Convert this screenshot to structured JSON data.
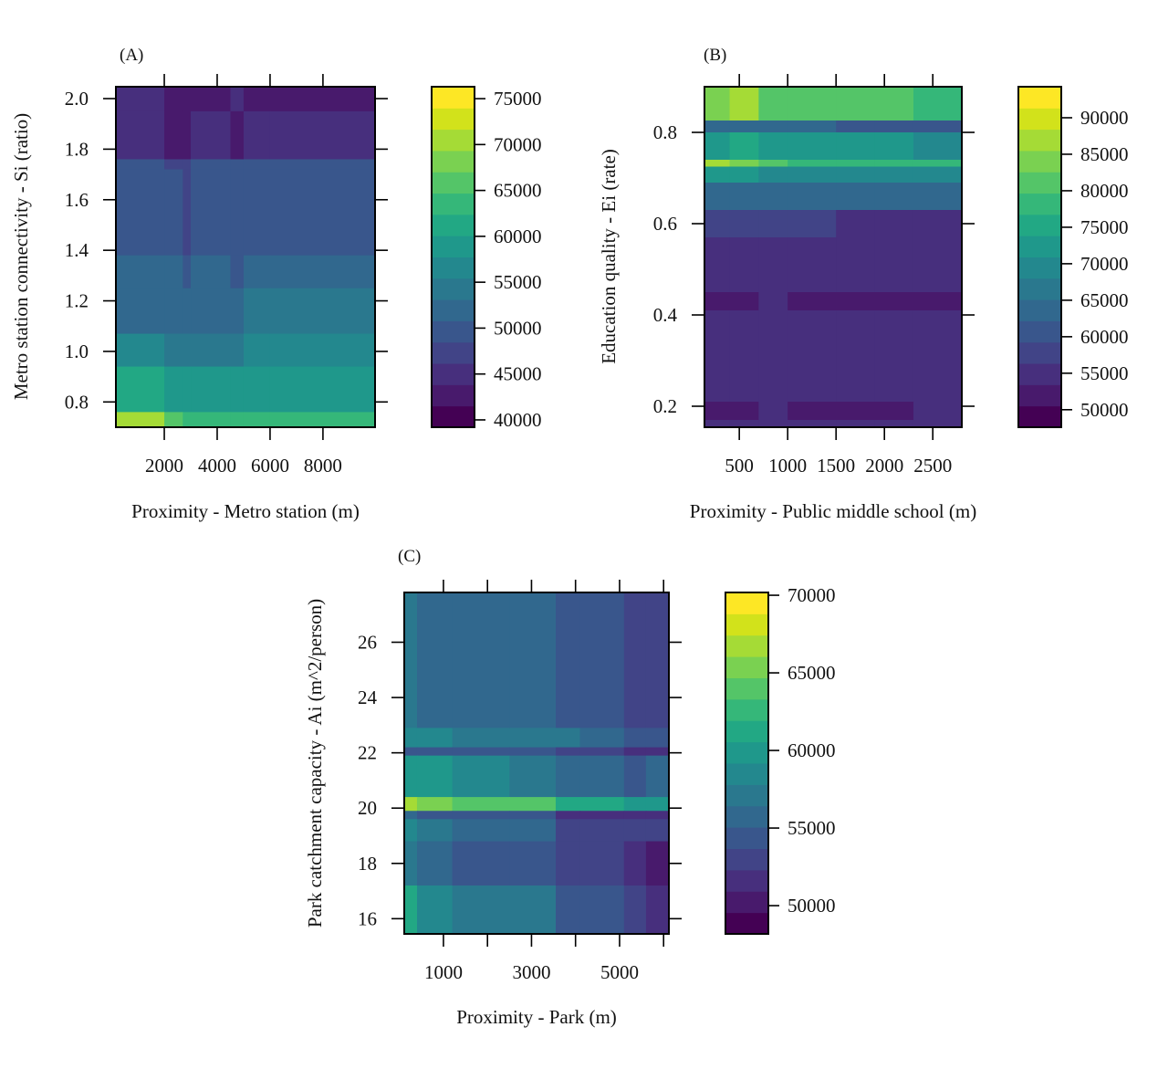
{
  "figure": {
    "panels": [
      "(A)",
      "(B)",
      "(C)"
    ]
  },
  "colormap": {
    "name": "viridis",
    "bands": 16,
    "colors": [
      "#440154",
      "#481a6c",
      "#472f7d",
      "#414487",
      "#39568c",
      "#31688e",
      "#2a788e",
      "#23888e",
      "#1f988b",
      "#22a884",
      "#35b779",
      "#54c568",
      "#7ad151",
      "#a5db36",
      "#d2e21b",
      "#fde725"
    ]
  },
  "chart_data": [
    {
      "id": "A",
      "type": "heatmap",
      "title": "(A)",
      "xlabel": "Proximity - Metro station (m)",
      "ylabel": "Metro station connectivity  - Si (ratio)",
      "xlim": [
        170,
        9970
      ],
      "ylim": [
        0.7,
        2.047
      ],
      "xticks": [
        2000,
        4000,
        6000,
        8000
      ],
      "xtick_labels": [
        "2000",
        "4000",
        "6000",
        "8000"
      ],
      "yticks": [
        0.8,
        1.0,
        1.2,
        1.4,
        1.6,
        1.8,
        2.0
      ],
      "ytick_labels": [
        "0.8",
        "1.0",
        "1.2",
        "1.4",
        "1.6",
        "1.8",
        "2.0"
      ],
      "colorbar": {
        "range": [
          39200,
          76300
        ],
        "ticks": [
          40000,
          45000,
          50000,
          55000,
          60000,
          65000,
          70000,
          75000
        ],
        "tick_labels": [
          "40000",
          "45000",
          "50000",
          "55000",
          "60000",
          "65000",
          "70000",
          "75000"
        ]
      },
      "x_breaks": [
        170,
        2000,
        2700,
        3000,
        4500,
        5000,
        6000,
        9970
      ],
      "rows": [
        {
          "y": [
            1.95,
            2.047
          ],
          "values": [
            44500,
            43000,
            42500,
            43500,
            44000,
            42500,
            42500
          ]
        },
        {
          "y": [
            1.76,
            1.95
          ],
          "values": [
            44500,
            43500,
            42800,
            44200,
            42600,
            44500,
            44500
          ]
        },
        {
          "y": [
            1.72,
            1.76
          ],
          "values": [
            48500,
            48000,
            47500,
            48500,
            48500,
            48500,
            48500
          ]
        },
        {
          "y": [
            1.38,
            1.72
          ],
          "values": [
            49000,
            48800,
            46500,
            49500,
            49500,
            49500,
            49500
          ]
        },
        {
          "y": [
            1.25,
            1.38
          ],
          "values": [
            51500,
            51000,
            49500,
            51500,
            49500,
            52000,
            52000
          ]
        },
        {
          "y": [
            1.07,
            1.25
          ],
          "values": [
            53000,
            53000,
            51000,
            53000,
            51000,
            53500,
            53500
          ]
        },
        {
          "y": [
            0.94,
            1.07
          ],
          "values": [
            55500,
            55000,
            54000,
            55000,
            55000,
            55500,
            55500
          ]
        },
        {
          "y": [
            0.76,
            0.94
          ],
          "values": [
            62000,
            60000,
            59000,
            59500,
            59500,
            59500,
            59500
          ]
        },
        {
          "y": [
            0.7,
            0.76
          ],
          "values": [
            70000,
            66000,
            64000,
            63500,
            63000,
            63500,
            63500
          ]
        }
      ]
    },
    {
      "id": "B",
      "type": "heatmap",
      "title": "(B)",
      "xlabel": "Proximity - Public middle school (m)",
      "ylabel": "Education quality - Ei (rate)",
      "xlim": [
        140,
        2800
      ],
      "ylim": [
        0.154,
        0.9
      ],
      "xticks": [
        500,
        1000,
        1500,
        2000,
        2500
      ],
      "xtick_labels": [
        "500",
        "1000",
        "1500",
        "2000",
        "2500"
      ],
      "yticks": [
        0.2,
        0.4,
        0.6,
        0.8
      ],
      "ytick_labels": [
        "0.2",
        "0.4",
        "0.6",
        "0.8"
      ],
      "colorbar": {
        "range": [
          47600,
          94250
        ],
        "ticks": [
          50000,
          55000,
          60000,
          65000,
          70000,
          75000,
          80000,
          85000,
          90000
        ],
        "tick_labels": [
          "50000",
          "55000",
          "60000",
          "65000",
          "70000",
          "75000",
          "80000",
          "85000",
          "90000"
        ]
      },
      "x_breaks": [
        140,
        400,
        700,
        1000,
        1500,
        1900,
        2300,
        2800
      ],
      "rows": [
        {
          "y": [
            0.826,
            0.9
          ],
          "values": [
            84000,
            88000,
            81000,
            81000,
            80500,
            80500,
            78000
          ]
        },
        {
          "y": [
            0.8,
            0.826
          ],
          "values": [
            64000,
            63500,
            63000,
            62500,
            61500,
            62000,
            60500
          ]
        },
        {
          "y": [
            0.74,
            0.8
          ],
          "values": [
            73500,
            74000,
            72500,
            72000,
            72000,
            71000,
            70000
          ]
        },
        {
          "y": [
            0.725,
            0.74
          ],
          "values": [
            86000,
            84000,
            80000,
            79000,
            78500,
            78000,
            78000
          ]
        },
        {
          "y": [
            0.69,
            0.725
          ],
          "values": [
            72000,
            71000,
            70000,
            69500,
            69000,
            69000,
            69000
          ]
        },
        {
          "y": [
            0.63,
            0.69
          ],
          "values": [
            64500,
            64000,
            63500,
            63500,
            63000,
            63000,
            63000
          ]
        },
        {
          "y": [
            0.57,
            0.63
          ],
          "values": [
            58500,
            58000,
            57000,
            56500,
            56000,
            56000,
            56000
          ]
        },
        {
          "y": [
            0.45,
            0.57
          ],
          "values": [
            54500,
            54000,
            54000,
            54000,
            54000,
            54000,
            54000
          ]
        },
        {
          "y": [
            0.41,
            0.45
          ],
          "values": [
            51000,
            51500,
            54000,
            51000,
            51000,
            51000,
            51000
          ]
        },
        {
          "y": [
            0.21,
            0.41
          ],
          "values": [
            54000,
            54000,
            54000,
            54000,
            54000,
            54000,
            54000
          ]
        },
        {
          "y": [
            0.17,
            0.21
          ],
          "values": [
            51500,
            51500,
            53500,
            51500,
            52000,
            53000,
            53500
          ]
        },
        {
          "y": [
            0.154,
            0.17
          ],
          "values": [
            53500,
            54000,
            54000,
            54000,
            54000,
            54000,
            54000
          ]
        }
      ]
    },
    {
      "id": "C",
      "type": "heatmap",
      "title": "(C)",
      "xlabel": "Proximity - Park (m)",
      "ylabel": "Park catchment capacity - Ai (m^2/person)",
      "xlim": [
        110,
        6120
      ],
      "ylim": [
        15.45,
        27.8
      ],
      "xticks": [
        1000,
        2000,
        3000,
        4000,
        5000,
        6000
      ],
      "xtick_labels": [
        "1000",
        "",
        "3000",
        "",
        "5000",
        ""
      ],
      "yticks": [
        16,
        18,
        20,
        22,
        24,
        26
      ],
      "ytick_labels": [
        "16",
        "18",
        "20",
        "22",
        "24",
        "26"
      ],
      "colorbar": {
        "range": [
          48180,
          70180
        ],
        "ticks": [
          50000,
          55000,
          60000,
          65000,
          70000
        ],
        "tick_labels": [
          "50000",
          "55000",
          "60000",
          "65000",
          "70000"
        ]
      },
      "x_breaks": [
        110,
        400,
        1200,
        2500,
        3550,
        4100,
        5100,
        5600,
        6120
      ],
      "rows": [
        {
          "y": [
            22.9,
            27.8
          ],
          "values": [
            56500,
            56000,
            55500,
            56000,
            54500,
            54500,
            53000,
            53000
          ]
        },
        {
          "y": [
            22.2,
            22.9
          ],
          "values": [
            58500,
            58500,
            57500,
            57500,
            56500,
            56000,
            54500,
            54500
          ]
        },
        {
          "y": [
            21.9,
            22.2
          ],
          "values": [
            55000,
            54500,
            54000,
            54000,
            53500,
            53500,
            51500,
            51500
          ]
        },
        {
          "y": [
            20.4,
            21.9
          ],
          "values": [
            60000,
            59500,
            58000,
            57500,
            55500,
            55500,
            54500,
            55500
          ]
        },
        {
          "y": [
            19.9,
            20.4
          ],
          "values": [
            67000,
            66000,
            64000,
            63500,
            61500,
            61500,
            60500,
            60500
          ]
        },
        {
          "y": [
            19.6,
            19.9
          ],
          "values": [
            55500,
            55000,
            54500,
            54000,
            51500,
            51500,
            51000,
            51000
          ]
        },
        {
          "y": [
            18.8,
            19.6
          ],
          "values": [
            58500,
            57500,
            56000,
            56000,
            53500,
            53500,
            52500,
            52500
          ]
        },
        {
          "y": [
            17.2,
            18.8
          ],
          "values": [
            57500,
            56000,
            55000,
            54500,
            53000,
            53000,
            51000,
            50500
          ]
        },
        {
          "y": [
            15.45,
            17.2
          ],
          "values": [
            61000,
            58500,
            57500,
            57000,
            55000,
            55000,
            53500,
            51500
          ]
        }
      ]
    }
  ]
}
